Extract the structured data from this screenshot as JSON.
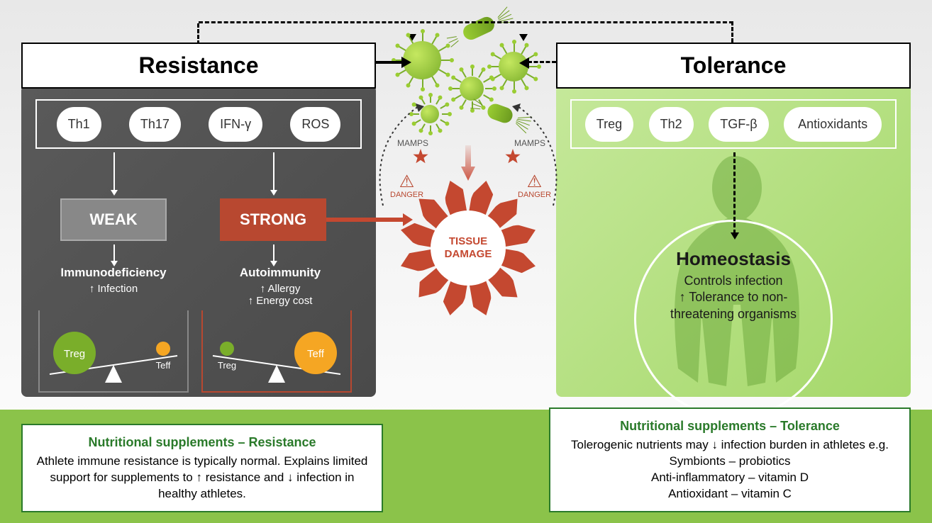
{
  "colors": {
    "panel_left_bg": "#4a4a4a",
    "panel_right_bg": "#a5d86a",
    "strong_red": "#b84830",
    "tissue_red": "#c44830",
    "green_accent": "#8bc34a",
    "treg_green": "#7aae2a",
    "teff_orange": "#f5a623",
    "supp_border": "#2a7a2a"
  },
  "headers": {
    "left": "Resistance",
    "right": "Tolerance"
  },
  "molecules": {
    "left": [
      "Th1",
      "Th17",
      "IFN-γ",
      "ROS"
    ],
    "right": [
      "Treg",
      "Th2",
      "TGF-β",
      "Antioxidants"
    ]
  },
  "gauges": {
    "weak": "WEAK",
    "strong": "STRONG"
  },
  "outcomes": {
    "weak": {
      "title": "Immunodeficiency",
      "lines": [
        "↑ Infection"
      ]
    },
    "strong": {
      "title": "Autoimmunity",
      "lines": [
        "↑ Allergy",
        "↑ Energy cost"
      ]
    }
  },
  "seesaws": {
    "weak": {
      "big": "Treg",
      "big_color": "#7aae2a",
      "small": "Teff",
      "small_color": "#f5a623",
      "tilt": "left",
      "bracket_color": "#888888"
    },
    "strong": {
      "big": "Teff",
      "big_color": "#f5a623",
      "small": "Treg",
      "small_color": "#7aae2a",
      "tilt": "right",
      "bracket_color": "#b84830"
    }
  },
  "tissue": {
    "label": "TISSUE\nDAMAGE",
    "blade_count": 12
  },
  "danger_label": "DANGER",
  "mamps_label": "MAMPS",
  "homeostasis": {
    "title": "Homeostasis",
    "lines": [
      "Controls infection",
      "↑ Tolerance to non-",
      "threatening organisms"
    ]
  },
  "supplements": {
    "left": {
      "title": "Nutritional supplements – Resistance",
      "body": "Athlete immune resistance is typically normal. Explains limited support for supplements to ↑ resistance and ↓ infection in healthy athletes."
    },
    "right": {
      "title": "Nutritional supplements – Tolerance",
      "lines": [
        "Tolerogenic nutrients may ↓ infection burden in athletes e.g.",
        "Symbionts – probiotics",
        "Anti-inflammatory – vitamin D",
        "Antioxidant – vitamin C"
      ]
    }
  }
}
